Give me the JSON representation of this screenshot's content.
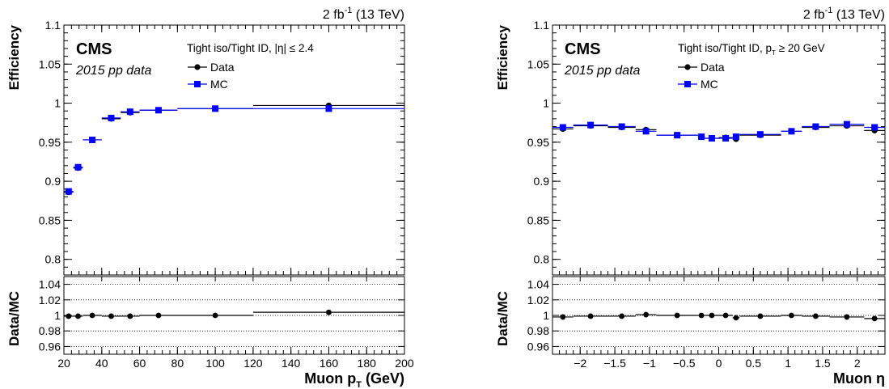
{
  "chart_data": [
    {
      "type": "scatter",
      "lumi_main": "2 fb",
      "lumi_exp": "-1",
      "lumi_rest": " (13 TeV)",
      "cms_label": "CMS",
      "data_label": "2015 pp data",
      "selection_label": "Tight iso/Tight ID, |η| ≤ 2.4",
      "legend": [
        "Data",
        "MC"
      ],
      "ylabel": "Efficiency",
      "ratio_ylabel": "Data/MC",
      "xlabel_main": "Muon p",
      "xlabel_sub": "T",
      "xlabel_unit": " (GeV)",
      "xlim": [
        20,
        200
      ],
      "ylim": [
        0.78,
        1.1
      ],
      "ratio_ylim": [
        0.95,
        1.05
      ],
      "x_ticks": [
        20,
        40,
        60,
        80,
        100,
        120,
        140,
        160,
        180,
        200
      ],
      "x_tick_labels": [
        "20",
        "40",
        "60",
        "80",
        "100",
        "120",
        "140",
        "160",
        "180",
        "200"
      ],
      "y_ticks": [
        0.8,
        0.85,
        0.9,
        0.95,
        1,
        1.05,
        1.1
      ],
      "y_tick_labels": [
        "0.8",
        "0.85",
        "0.9",
        "0.95",
        "1",
        "1.05",
        "1.1"
      ],
      "ratio_ticks": [
        0.96,
        0.98,
        1,
        1.02,
        1.04
      ],
      "ratio_tick_labels": [
        "0.96",
        "0.98",
        "1",
        "1.02",
        "1.04"
      ],
      "bins": [
        [
          20,
          25
        ],
        [
          25,
          30
        ],
        [
          30,
          40
        ],
        [
          40,
          50
        ],
        [
          50,
          60
        ],
        [
          60,
          80
        ],
        [
          80,
          120
        ],
        [
          120,
          200
        ]
      ],
      "series": [
        {
          "name": "Data",
          "values": [
            0.886,
            0.917,
            0.953,
            0.98,
            0.988,
            0.991,
            0.993,
            0.997
          ]
        },
        {
          "name": "MC",
          "values": [
            0.887,
            0.918,
            0.953,
            0.981,
            0.989,
            0.991,
            0.993,
            0.993
          ]
        }
      ],
      "ratio_values": [
        0.999,
        0.999,
        1.0,
        0.999,
        0.999,
        1.0,
        1.0,
        1.004
      ]
    },
    {
      "type": "scatter",
      "lumi_main": "2 fb",
      "lumi_exp": "-1",
      "lumi_rest": " (13 TeV)",
      "cms_label": "CMS",
      "data_label": "2015 pp data",
      "selection_label": "Tight iso/Tight ID, p",
      "selection_sub": "T",
      "selection_rest": " ≥ 20 GeV",
      "legend": [
        "Data",
        "MC"
      ],
      "ylabel": "Efficiency",
      "ratio_ylabel": "Data/MC",
      "xlabel_main": "Muon η",
      "xlim": [
        -2.4,
        2.4
      ],
      "ylim": [
        0.78,
        1.1
      ],
      "ratio_ylim": [
        0.95,
        1.05
      ],
      "x_ticks": [
        -2,
        -1.5,
        -1,
        -0.5,
        0,
        0.5,
        1,
        1.5,
        2
      ],
      "x_tick_labels": [
        "−2",
        "−1.5",
        "−1",
        "−0.5",
        "0",
        "0.5",
        "1",
        "1.5",
        "2"
      ],
      "y_ticks": [
        0.8,
        0.85,
        0.9,
        0.95,
        1,
        1.05,
        1.1
      ],
      "y_tick_labels": [
        "0.8",
        "0.85",
        "0.9",
        "0.95",
        "1",
        "1.05",
        "1.1"
      ],
      "ratio_ticks": [
        0.96,
        0.98,
        1,
        1.02,
        1.04
      ],
      "ratio_tick_labels": [
        "0.96",
        "0.98",
        "1",
        "1.02",
        "1.04"
      ],
      "bins": [
        [
          -2.4,
          -2.1
        ],
        [
          -2.1,
          -1.6
        ],
        [
          -1.6,
          -1.2
        ],
        [
          -1.2,
          -0.9
        ],
        [
          -0.9,
          -0.3
        ],
        [
          -0.3,
          -0.2
        ],
        [
          -0.2,
          0.0
        ],
        [
          0.0,
          0.2
        ],
        [
          0.2,
          0.3
        ],
        [
          0.3,
          0.9
        ],
        [
          0.9,
          1.2
        ],
        [
          1.2,
          1.6
        ],
        [
          1.6,
          2.1
        ],
        [
          2.1,
          2.4
        ]
      ],
      "series": [
        {
          "name": "Data",
          "values": [
            0.967,
            0.971,
            0.969,
            0.966,
            0.959,
            0.957,
            0.955,
            0.956,
            0.954,
            0.959,
            0.964,
            0.969,
            0.971,
            0.965
          ]
        },
        {
          "name": "MC",
          "values": [
            0.969,
            0.972,
            0.97,
            0.964,
            0.959,
            0.957,
            0.955,
            0.955,
            0.957,
            0.96,
            0.964,
            0.97,
            0.973,
            0.969
          ]
        }
      ],
      "ratio_values": [
        0.998,
        0.999,
        0.999,
        1.001,
        1.0,
        1.0,
        1.0,
        1.0,
        0.997,
        0.999,
        1.0,
        0.999,
        0.998,
        0.996
      ]
    }
  ]
}
